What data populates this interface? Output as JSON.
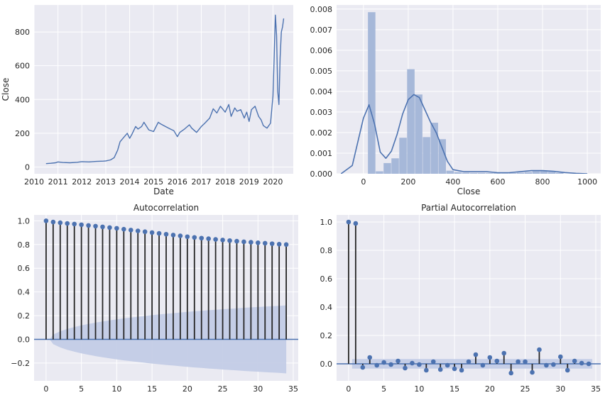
{
  "colors": {
    "line": "#4c72b0",
    "stem": "#262626",
    "hist": "#a6b8d9",
    "ci": "#c3cce6",
    "background": "#eaeaf2",
    "grid": "#ffffff"
  },
  "chart_data": [
    {
      "id": "close",
      "type": "line",
      "title": "",
      "xlabel": "Date",
      "ylabel": "Close",
      "xlim": [
        2010,
        2020.85
      ],
      "ylim": [
        -40,
        960
      ],
      "xticks": [
        2010,
        2011,
        2012,
        2013,
        2014,
        2015,
        2016,
        2017,
        2018,
        2019,
        2020
      ],
      "yticks": [
        0,
        200,
        400,
        600,
        800
      ],
      "x": [
        2010.5,
        2010.7,
        2010.9,
        2011.0,
        2011.2,
        2011.5,
        2011.8,
        2012.0,
        2012.3,
        2012.6,
        2012.9,
        2013.0,
        2013.2,
        2013.35,
        2013.5,
        2013.6,
        2013.75,
        2013.9,
        2014.0,
        2014.1,
        2014.25,
        2014.35,
        2014.5,
        2014.6,
        2014.8,
        2015.0,
        2015.2,
        2015.3,
        2015.5,
        2015.7,
        2015.85,
        2016.0,
        2016.1,
        2016.3,
        2016.5,
        2016.6,
        2016.8,
        2017.0,
        2017.15,
        2017.35,
        2017.5,
        2017.65,
        2017.8,
        2018.0,
        2018.15,
        2018.25,
        2018.4,
        2018.5,
        2018.65,
        2018.8,
        2018.9,
        2019.0,
        2019.1,
        2019.25,
        2019.4,
        2019.5,
        2019.6,
        2019.75,
        2019.9,
        2020.0,
        2020.05,
        2020.1,
        2020.15,
        2020.2,
        2020.25,
        2020.3,
        2020.35,
        2020.4,
        2020.45
      ],
      "values": [
        20,
        22,
        25,
        30,
        27,
        25,
        28,
        32,
        30,
        33,
        35,
        36,
        42,
        55,
        100,
        150,
        175,
        200,
        170,
        195,
        240,
        225,
        240,
        265,
        220,
        210,
        265,
        255,
        240,
        225,
        215,
        180,
        205,
        225,
        250,
        230,
        205,
        240,
        260,
        290,
        345,
        320,
        360,
        325,
        370,
        300,
        350,
        330,
        340,
        290,
        325,
        270,
        340,
        360,
        300,
        280,
        245,
        230,
        260,
        420,
        650,
        900,
        780,
        450,
        370,
        650,
        800,
        830,
        880
      ]
    },
    {
      "id": "distribution",
      "type": "bar",
      "title": "",
      "xlabel": "Close",
      "ylabel": "",
      "xlim": [
        -120,
        1060
      ],
      "ylim": [
        0,
        0.0082
      ],
      "xticks": [
        0,
        200,
        400,
        600,
        800,
        1000
      ],
      "yticks": [
        0,
        0.001,
        0.002,
        0.003,
        0.004,
        0.005,
        0.006,
        0.007,
        0.008
      ],
      "ytick_labels": [
        "0.000",
        "0.001",
        "0.002",
        "0.003",
        "0.004",
        "0.005",
        "0.006",
        "0.007",
        "0.008"
      ],
      "bin_edges": [
        20,
        55,
        90,
        125,
        160,
        195,
        230,
        265,
        300,
        335,
        370,
        405,
        440,
        475,
        510,
        545,
        580,
        615,
        650,
        685,
        720,
        755,
        790,
        825,
        860,
        895
      ],
      "values": [
        0.00785,
        0.00012,
        0.00052,
        0.00075,
        0.00175,
        0.00508,
        0.00385,
        0.00178,
        0.00248,
        0.00168,
        0.00015,
        8e-05,
        5e-05,
        4e-05,
        4e-05,
        3e-05,
        3e-05,
        2e-05,
        3e-05,
        5e-05,
        8e-05,
        0.00012,
        0.00013,
        0.0001,
        5e-05
      ],
      "kde": {
        "x": [
          -100,
          -50,
          0,
          25,
          50,
          75,
          100,
          125,
          150,
          175,
          200,
          225,
          250,
          275,
          300,
          325,
          350,
          375,
          400,
          450,
          500,
          550,
          600,
          650,
          700,
          750,
          800,
          850,
          900,
          950,
          1000
        ],
        "values": [
          0.0,
          0.0004,
          0.0027,
          0.00335,
          0.0024,
          0.00105,
          0.00075,
          0.0011,
          0.0019,
          0.0029,
          0.0036,
          0.00385,
          0.0037,
          0.0031,
          0.0025,
          0.002,
          0.0013,
          0.0006,
          0.0002,
          0.0001,
          0.0001,
          0.0001,
          5e-05,
          5e-05,
          0.0001,
          0.00015,
          0.00015,
          0.00012,
          6e-05,
          2e-05,
          0.0
        ]
      }
    },
    {
      "id": "acf",
      "type": "scatter",
      "title": "Autocorrelation",
      "xlabel": "",
      "ylabel": "",
      "xlim": [
        -1.7,
        35.7
      ],
      "ylim": [
        -0.35,
        1.05
      ],
      "xticks": [
        0,
        5,
        10,
        15,
        20,
        25,
        30,
        35
      ],
      "yticks": [
        -0.2,
        0.0,
        0.2,
        0.4,
        0.6,
        0.8,
        1.0
      ],
      "ytick_labels": [
        "−0.2",
        "0.0",
        "0.2",
        "0.4",
        "0.6",
        "0.8",
        "1.0"
      ],
      "lags": [
        0,
        1,
        2,
        3,
        4,
        5,
        6,
        7,
        8,
        9,
        10,
        11,
        12,
        13,
        14,
        15,
        16,
        17,
        18,
        19,
        20,
        21,
        22,
        23,
        24,
        25,
        26,
        27,
        28,
        29,
        30,
        31,
        32,
        33,
        34
      ],
      "values": [
        1.0,
        0.99,
        0.984,
        0.978,
        0.973,
        0.967,
        0.961,
        0.955,
        0.949,
        0.943,
        0.937,
        0.929,
        0.922,
        0.915,
        0.908,
        0.901,
        0.894,
        0.887,
        0.88,
        0.873,
        0.866,
        0.86,
        0.854,
        0.849,
        0.843,
        0.838,
        0.833,
        0.828,
        0.823,
        0.819,
        0.815,
        0.811,
        0.807,
        0.803,
        0.8
      ],
      "confidence_band": [
        0.0,
        0.04,
        0.068,
        0.088,
        0.104,
        0.118,
        0.13,
        0.141,
        0.151,
        0.16,
        0.169,
        0.177,
        0.184,
        0.191,
        0.198,
        0.204,
        0.21,
        0.216,
        0.221,
        0.227,
        0.232,
        0.237,
        0.241,
        0.246,
        0.25,
        0.254,
        0.258,
        0.262,
        0.266,
        0.27,
        0.273,
        0.277,
        0.28,
        0.283,
        0.287
      ]
    },
    {
      "id": "pacf",
      "type": "scatter",
      "title": "Partial Autocorrelation",
      "xlabel": "",
      "ylabel": "",
      "xlim": [
        -1.7,
        35.7
      ],
      "ylim": [
        -0.12,
        1.05
      ],
      "xticks": [
        0,
        5,
        10,
        15,
        20,
        25,
        30,
        35
      ],
      "yticks": [
        0.0,
        0.2,
        0.4,
        0.6,
        0.8,
        1.0
      ],
      "ytick_labels": [
        "0.0",
        "0.2",
        "0.4",
        "0.6",
        "0.8",
        "1.0"
      ],
      "lags": [
        0,
        1,
        2,
        3,
        4,
        5,
        6,
        7,
        8,
        9,
        10,
        11,
        12,
        13,
        14,
        15,
        16,
        17,
        18,
        19,
        20,
        21,
        22,
        23,
        24,
        25,
        26,
        27,
        28,
        29,
        30,
        31,
        32,
        33,
        34
      ],
      "values": [
        1.0,
        0.99,
        -0.025,
        0.045,
        -0.01,
        0.01,
        -0.005,
        0.02,
        -0.03,
        0.005,
        -0.005,
        -0.045,
        0.015,
        -0.04,
        -0.01,
        -0.035,
        -0.045,
        0.015,
        0.065,
        -0.01,
        0.045,
        0.02,
        0.075,
        -0.065,
        0.015,
        0.015,
        -0.06,
        0.1,
        -0.01,
        -0.005,
        0.05,
        -0.045,
        0.02,
        0.005,
        0.0
      ],
      "confidence_band": 0.034
    }
  ]
}
